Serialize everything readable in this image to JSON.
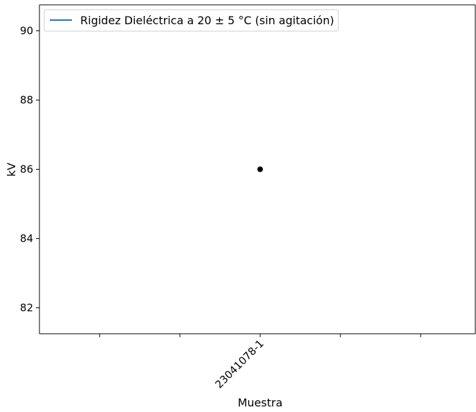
{
  "chart_data": {
    "type": "scatter",
    "xlabel": "Muestra",
    "ylabel": "kV",
    "x_categories": [
      "23041078-1"
    ],
    "x_tick_count": 5,
    "x_labeled_tick_index": 2,
    "yticks": [
      82,
      84,
      86,
      88,
      90
    ],
    "ylim": [
      81.25,
      90.75
    ],
    "series": [
      {
        "name": "Rigidez Dieléctrica a 20 ± 5 °C (sin agitación)",
        "legend_marker": "line",
        "color": "#1f77b4",
        "points": [
          {
            "x": "23041078-1",
            "y": 86
          }
        ]
      }
    ],
    "point_color": "#000000",
    "legend_position": "top-left",
    "grid": false
  }
}
